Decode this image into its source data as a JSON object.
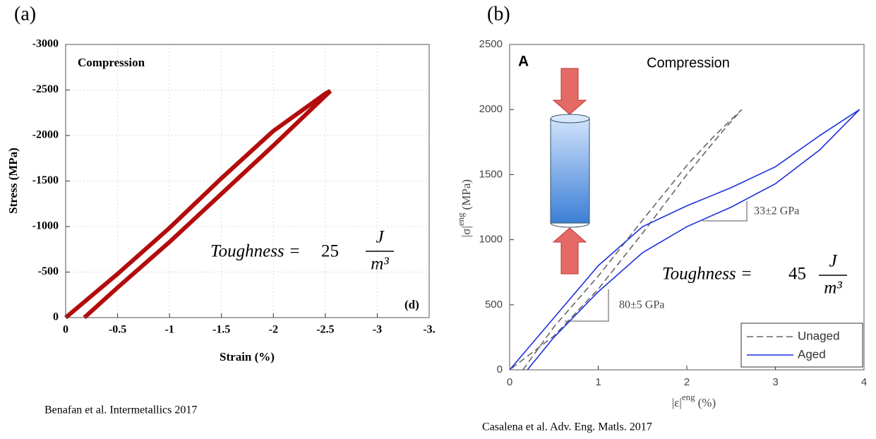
{
  "chart_data": [
    {
      "type": "line",
      "panel_label": "(a)",
      "caption": "Benafan et al. Intermetallics 2017",
      "xlabel": "Strain (%)",
      "ylabel": "Stress (MPa)",
      "annotations": [
        "Compression",
        "(d)"
      ],
      "toughness": {
        "text": "Toughness =",
        "value": 25,
        "unit_num": "J",
        "unit_den": "m³"
      },
      "xlim": [
        0,
        -3.5
      ],
      "xticks": [
        0,
        -0.5,
        -1,
        -1.5,
        -2,
        -2.5,
        -3,
        {
          "value": -3.5,
          "label": "-3."
        }
      ],
      "ylim": [
        0,
        -3000
      ],
      "yticks": [
        0,
        -500,
        -1000,
        -1500,
        -2000,
        -2500,
        -3000
      ],
      "grid": true,
      "series": [
        {
          "color": "#b30c0c",
          "x": [
            0,
            -0.5,
            -1,
            -1.5,
            -2,
            -2.5,
            -2.55
          ],
          "values": [
            0,
            -480,
            -985,
            -1530,
            -2050,
            -2460,
            -2490
          ]
        },
        {
          "color": "#b30c0c",
          "x": [
            -0.18,
            -0.5,
            -1,
            -1.5,
            -2,
            -2.55
          ],
          "values": [
            0,
            -330,
            -830,
            -1360,
            -1890,
            -2490
          ]
        }
      ]
    },
    {
      "type": "line",
      "panel_label": "(b)",
      "caption": "Casalena et al. Adv. Eng. Matls. 2017",
      "xlabel": {
        "main": "|ε|",
        "sup": "eng",
        "unit": "(%)"
      },
      "ylabel": {
        "main": "|σ|",
        "sup": "eng",
        "unit": "(MPa)"
      },
      "annotations": [
        "A",
        "Compression",
        "33±2 GPa",
        "80±5 GPa"
      ],
      "toughness": {
        "text": "Toughness =",
        "value": 45,
        "unit_num": "J",
        "unit_den": "m³"
      },
      "xlim": [
        0,
        4
      ],
      "xticks": [
        0,
        1,
        2,
        3,
        4
      ],
      "ylim": [
        0,
        2500
      ],
      "yticks": [
        0,
        500,
        1000,
        1500,
        2000,
        2500
      ],
      "grid": false,
      "legend": "lower right",
      "series": [
        {
          "name": "Unaged",
          "color": "#666666",
          "dash": true,
          "x": [
            0.15,
            0.5,
            1,
            1.5,
            2,
            2.3,
            2.62,
            2.4,
            2,
            1.5,
            1,
            0.5,
            0
          ],
          "values": [
            0,
            330,
            720,
            1150,
            1570,
            1790,
            2000,
            1830,
            1500,
            1050,
            620,
            260,
            0
          ]
        },
        {
          "name": "Aged",
          "color": "#1f2fe0",
          "dash": false,
          "x": [
            0.2,
            0.5,
            1,
            1.5,
            2,
            2.5,
            3,
            3.5,
            3.95,
            3.5,
            3,
            2.5,
            2,
            1.5,
            1,
            0.5,
            0
          ],
          "values": [
            0,
            250,
            600,
            900,
            1100,
            1250,
            1430,
            1690,
            2000,
            1800,
            1560,
            1400,
            1260,
            1100,
            800,
            400,
            0
          ]
        }
      ]
    }
  ]
}
